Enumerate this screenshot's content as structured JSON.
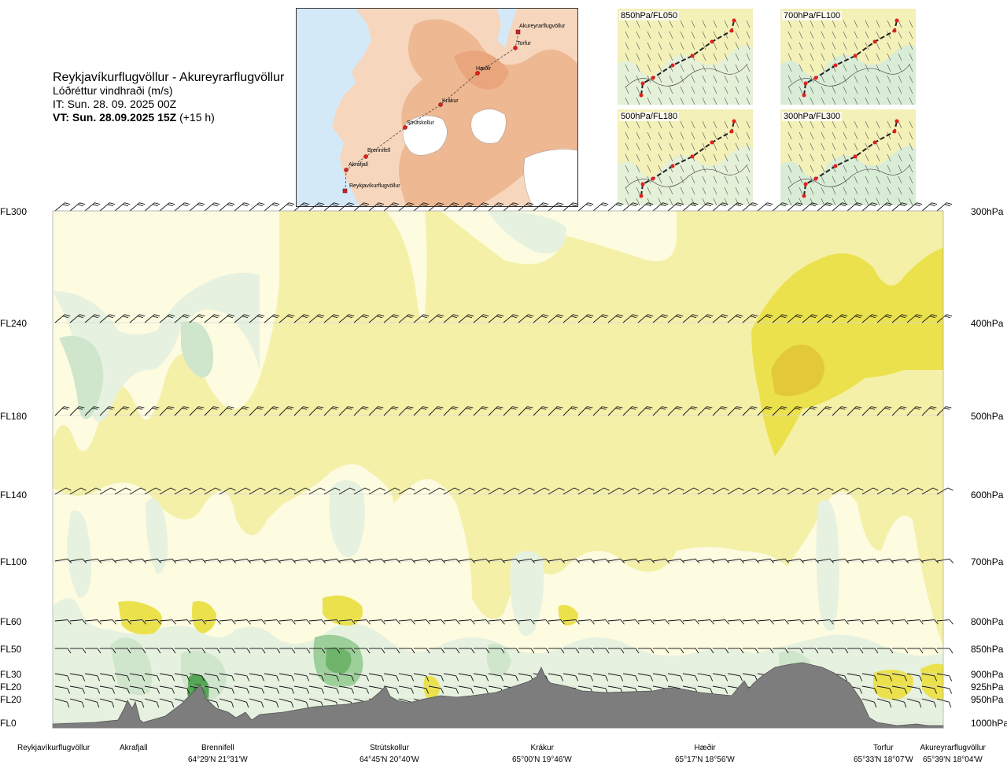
{
  "title": {
    "route": "Reykjavíkurflugvöllur - Akureyrarflugvöllur",
    "subtitle": "Lóðréttur vindhraði (m/s)",
    "issue_time": "IT: Sun. 28. 09. 2025 00Z",
    "valid_time": "VT: Sun. 28.09.2025 15Z",
    "lead": "(+15 h)"
  },
  "route_map": {
    "waypoints": [
      "Reykjavíkurflugvöllur",
      "Akrafjall",
      "Brennifell",
      "Strútskollur",
      "Krákur",
      "Hæðir",
      "Torfur",
      "Akureyrarflugvöllur"
    ]
  },
  "mini_maps": [
    {
      "label": "850hPa/FL050"
    },
    {
      "label": "700hPa/FL100"
    },
    {
      "label": "500hPa/FL180"
    },
    {
      "label": "300hPa/FL300"
    }
  ],
  "levels": [
    {
      "fl": "FL300",
      "hpa": "300hPa"
    },
    {
      "fl": "FL240",
      "hpa": "400hPa"
    },
    {
      "fl": "FL180",
      "hpa": "500hPa"
    },
    {
      "fl": "FL140",
      "hpa": "600hPa"
    },
    {
      "fl": "FL100",
      "hpa": "700hPa"
    },
    {
      "fl": "FL60",
      "hpa": "800hPa"
    },
    {
      "fl": "FL50",
      "hpa": "850hPa"
    },
    {
      "fl": "FL30",
      "hpa": "900hPa"
    },
    {
      "fl": "FL20",
      "hpa": "925hPa"
    },
    {
      "fl": "FL20",
      "hpa": "950hPa"
    },
    {
      "fl": "FL0",
      "hpa": "1000hPa"
    }
  ],
  "waypoints": [
    {
      "name": "Reykjavíkurflugvöllur",
      "coord": ""
    },
    {
      "name": "Akrafjall",
      "coord": ""
    },
    {
      "name": "Brennifell",
      "coord": "64°29'N 21°31'W"
    },
    {
      "name": "Strútskollur",
      "coord": "64°45'N 20°40'W"
    },
    {
      "name": "Krákur",
      "coord": "65°00'N 19°46'W"
    },
    {
      "name": "Hæðir",
      "coord": "65°17'N 18°56'W"
    },
    {
      "name": "Torfur",
      "coord": "65°33'N 18°07'W"
    },
    {
      "name": "Akureyrarflugvöllur",
      "coord": "65°39'N 18°04'W"
    }
  ],
  "colors": {
    "weak_updraft": "#f5f0a8",
    "near_zero": "#fdfbe0",
    "weak_down": "#e6f2df",
    "mod_down": "#cfe6cc",
    "strong_down": "#9dcf9a",
    "very_strong_down": "#55a655",
    "mod_up": "#ebe14c",
    "strong_up": "#e3c93a",
    "terrain": "#7d7d7d",
    "route_line": "#333333",
    "route_point": "#e0201b"
  }
}
